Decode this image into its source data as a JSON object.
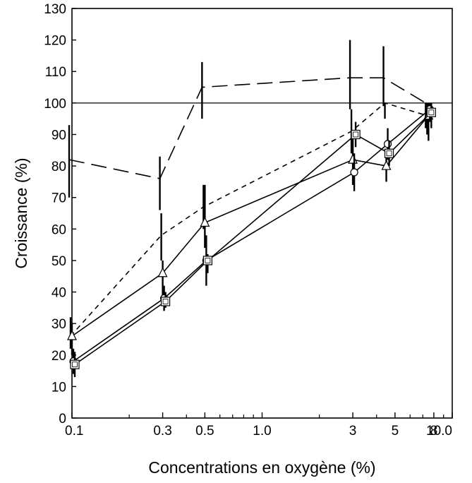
{
  "chart_data": {
    "type": "line",
    "title": "",
    "xlabel": "Concentrations en oxygène (%)",
    "ylabel": "Croissance (%)",
    "xscale": "log",
    "xlim": [
      0.1,
      10.0
    ],
    "ylim": [
      0,
      130
    ],
    "x_ticks": [
      0.1,
      0.3,
      0.5,
      1.0,
      3,
      5,
      8,
      10.0
    ],
    "x_tick_labels": [
      "0.1",
      "0.3",
      "0.5",
      "1.0",
      "3",
      "5",
      "8",
      "10.0"
    ],
    "y_ticks": [
      0,
      10,
      20,
      30,
      40,
      50,
      60,
      70,
      80,
      90,
      100,
      110,
      120,
      130
    ],
    "y_tick_labels": [
      "0",
      "10",
      "20",
      "30",
      "40",
      "50",
      "60",
      "70",
      "80",
      "90",
      "100",
      "110",
      "120",
      "130"
    ],
    "reference_line": {
      "y": 100
    },
    "grid": false,
    "series": [
      {
        "style": "long-dash",
        "marker": "none",
        "x": [
          0.1,
          0.3,
          0.5,
          3,
          4.5,
          7.5
        ],
        "y": [
          82,
          76,
          105,
          108,
          108,
          100
        ],
        "error": [
          [
            70,
            93
          ],
          [
            66,
            83
          ],
          [
            95,
            113
          ],
          [
            98,
            120
          ],
          [
            99,
            118
          ],
          [
            92,
            100
          ]
        ]
      },
      {
        "style": "short-dash",
        "marker": "none",
        "x": [
          0.1,
          0.3,
          0.5,
          3,
          4.5,
          7.5
        ],
        "y": [
          26,
          58,
          67,
          91,
          100,
          96
        ],
        "error": [
          [
            22,
            32
          ],
          [
            50,
            65
          ],
          [
            60,
            74
          ],
          [
            84,
            98
          ],
          [
            95,
            100
          ],
          [
            90,
            100
          ]
        ]
      },
      {
        "style": "solid",
        "marker": "triangle",
        "x": [
          0.1,
          0.3,
          0.5,
          3,
          4.5,
          7.5
        ],
        "y": [
          26,
          46,
          62,
          82,
          80,
          96
        ],
        "error": [
          [
            20,
            30
          ],
          [
            38,
            50
          ],
          [
            54,
            74
          ],
          [
            74,
            90
          ],
          [
            75,
            85
          ],
          [
            88,
            100
          ]
        ]
      },
      {
        "style": "solid",
        "marker": "circle",
        "x": [
          0.1,
          0.3,
          0.5,
          3,
          4.5,
          7.5
        ],
        "y": [
          18,
          38,
          50,
          78,
          87,
          98
        ],
        "error": [
          [
            14,
            22
          ],
          [
            34,
            42
          ],
          [
            42,
            58
          ],
          [
            72,
            84
          ],
          [
            82,
            92
          ],
          [
            94,
            100
          ]
        ]
      },
      {
        "style": "solid",
        "marker": "square",
        "x": [
          0.1,
          0.3,
          0.5,
          3,
          4.5,
          7.5
        ],
        "y": [
          17,
          37,
          50,
          90,
          84,
          97
        ],
        "error": [
          [
            13,
            21
          ],
          [
            35,
            40
          ],
          [
            46,
            52
          ],
          [
            86,
            94
          ],
          [
            80,
            88
          ],
          [
            92,
            100
          ]
        ]
      }
    ]
  }
}
